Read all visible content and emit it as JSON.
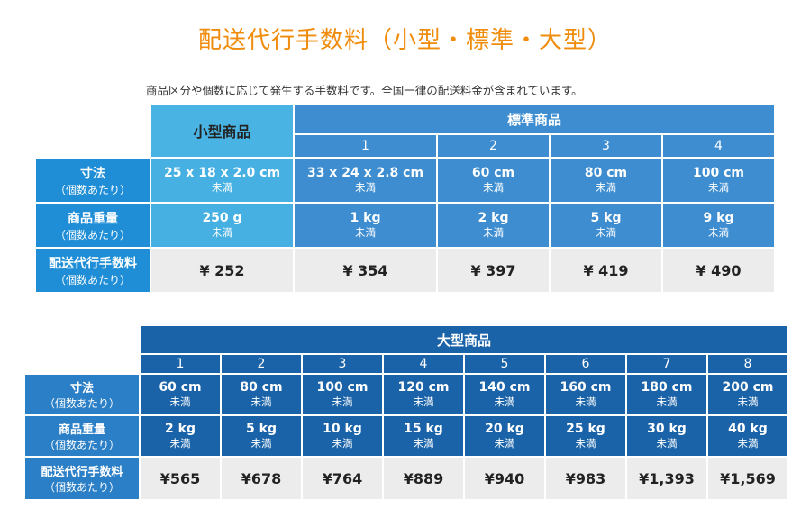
{
  "title": "配送代行手数料（小型・標準・大型）",
  "subtitle": "商品区分や個数に応じて発生する手数料です。全国一律の配送料金が含まれています。",
  "table1": {
    "small_header": "小型商品",
    "standard_header": "標準商品",
    "standard_cols": [
      "1",
      "2",
      "3",
      "4"
    ],
    "rows": {
      "size": {
        "label": "寸法",
        "sub": "（個数あたり）"
      },
      "weight": {
        "label": "商品重量",
        "sub": "（個数あたり）"
      },
      "fee": {
        "label": "配送代行手数料",
        "sub": "（個数あたり）"
      }
    },
    "small": {
      "size": "25 x 18 x 2.0 cm",
      "size_sub": "未満",
      "weight": "250 g",
      "weight_sub": "未満",
      "fee": "¥ 252"
    },
    "standard": [
      {
        "size": "33 x 24 x 2.8 cm",
        "size_sub": "未満",
        "weight": "1 kg",
        "weight_sub": "未満",
        "fee": "¥ 354"
      },
      {
        "size": "60 cm",
        "size_sub": "未満",
        "weight": "2 kg",
        "weight_sub": "未満",
        "fee": "¥ 397"
      },
      {
        "size": "80 cm",
        "size_sub": "未満",
        "weight": "5 kg",
        "weight_sub": "未満",
        "fee": "¥ 419"
      },
      {
        "size": "100 cm",
        "size_sub": "未満",
        "weight": "9 kg",
        "weight_sub": "未満",
        "fee": "¥ 490"
      }
    ]
  },
  "table2": {
    "large_header": "大型商品",
    "cols": [
      "1",
      "2",
      "3",
      "4",
      "5",
      "6",
      "7",
      "8"
    ],
    "rows": {
      "size": {
        "label": "寸法",
        "sub": "（個数あたり）"
      },
      "weight": {
        "label": "商品重量",
        "sub": "（個数あたり）"
      },
      "fee": {
        "label": "配送代行手数料",
        "sub": "（個数あたり）"
      }
    },
    "large": [
      {
        "size": "60 cm",
        "size_sub": "未満",
        "weight": "2 kg",
        "weight_sub": "未満",
        "fee": "¥565"
      },
      {
        "size": "80 cm",
        "size_sub": "未満",
        "weight": "5 kg",
        "weight_sub": "未満",
        "fee": "¥678"
      },
      {
        "size": "100 cm",
        "size_sub": "未満",
        "weight": "10 kg",
        "weight_sub": "未満",
        "fee": "¥764"
      },
      {
        "size": "120 cm",
        "size_sub": "未満",
        "weight": "15 kg",
        "weight_sub": "未満",
        "fee": "¥889"
      },
      {
        "size": "140 cm",
        "size_sub": "未満",
        "weight": "20 kg",
        "weight_sub": "未満",
        "fee": "¥940"
      },
      {
        "size": "160 cm",
        "size_sub": "未満",
        "weight": "25 kg",
        "weight_sub": "未満",
        "fee": "¥983"
      },
      {
        "size": "180 cm",
        "size_sub": "未満",
        "weight": "30 kg",
        "weight_sub": "未満",
        "fee": "¥1,393"
      },
      {
        "size": "200 cm",
        "size_sub": "未満",
        "weight": "40 kg",
        "weight_sub": "未満",
        "fee": "¥1,569"
      }
    ]
  }
}
